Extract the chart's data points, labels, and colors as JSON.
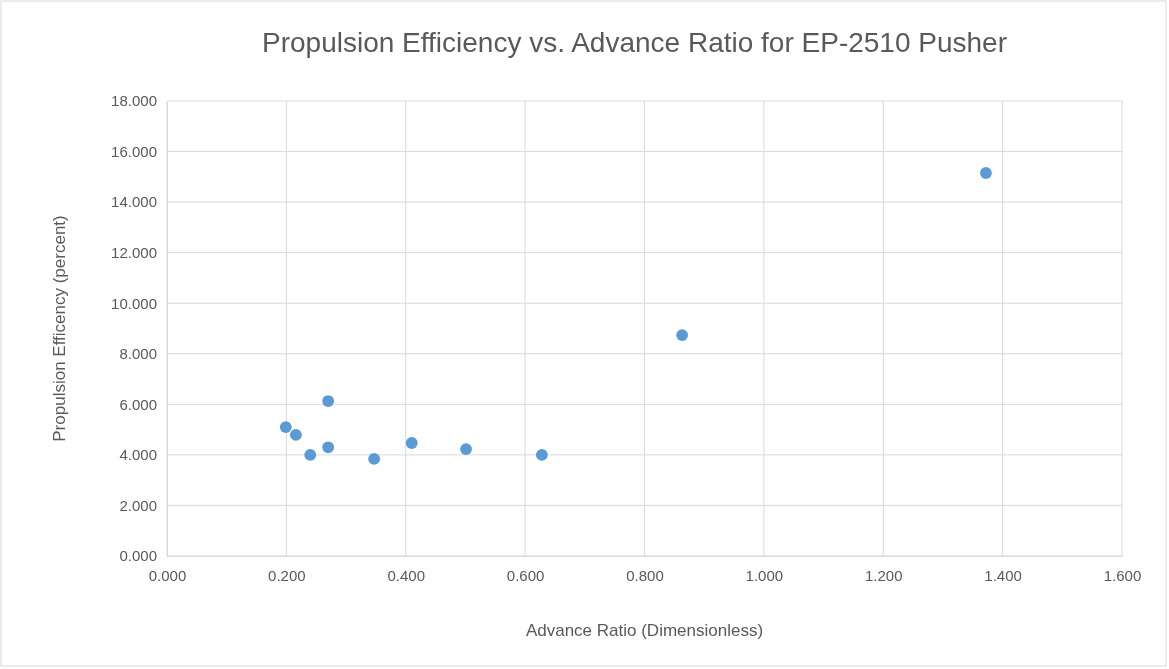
{
  "chart_data": {
    "type": "scatter",
    "title": "Propulsion Efficiency vs. Advance Ratio for EP-2510 Pusher",
    "xlabel": "Advance Ratio (Dimensionless)",
    "ylabel": "Propulsion Efficency (percent)",
    "x": [
      0.199,
      0.216,
      0.24,
      0.27,
      0.27,
      0.347,
      0.41,
      0.501,
      0.628,
      0.863,
      1.372
    ],
    "series": [
      {
        "color": "#5b9bd5",
        "values": [
          5.1,
          4.79,
          4.0,
          4.3,
          6.13,
          3.84,
          4.47,
          4.23,
          4.0,
          8.74,
          15.15
        ]
      }
    ],
    "xlim": [
      0,
      1.6
    ],
    "xticks": [
      {
        "value": 0,
        "label": "0.000"
      },
      {
        "value": 0.2,
        "label": "0.200"
      },
      {
        "value": 0.4,
        "label": "0.400"
      },
      {
        "value": 0.6,
        "label": "0.600"
      },
      {
        "value": 0.8,
        "label": "0.800"
      },
      {
        "value": 1,
        "label": "1.000"
      },
      {
        "value": 1.2,
        "label": "1.200"
      },
      {
        "value": 1.4,
        "label": "1.400"
      },
      {
        "value": 1.6,
        "label": "1.600"
      }
    ],
    "ylim": [
      0,
      18
    ],
    "yticks": [
      {
        "value": 0,
        "label": "0.000"
      },
      {
        "value": 2,
        "label": "2.000"
      },
      {
        "value": 4,
        "label": "4.000"
      },
      {
        "value": 6,
        "label": "6.000"
      },
      {
        "value": 8,
        "label": "8.000"
      },
      {
        "value": 10,
        "label": "10.000"
      },
      {
        "value": 12,
        "label": "12.000"
      },
      {
        "value": 14,
        "label": "14.000"
      },
      {
        "value": 16,
        "label": "16.000"
      },
      {
        "value": 18,
        "label": "18.000"
      }
    ],
    "grid": true,
    "marker": "circle"
  }
}
